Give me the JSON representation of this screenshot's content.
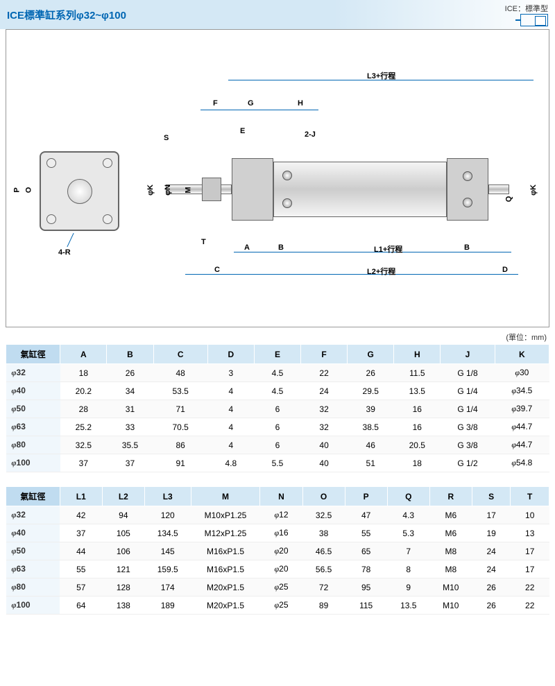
{
  "title": "ICE標準缸系列φ32~φ100",
  "legend": {
    "label": "ICE：標準型"
  },
  "unit_label": "(單位：mm)",
  "diagram": {
    "labels": [
      "L3+行程",
      "F",
      "G",
      "H",
      "S",
      "E",
      "2-J",
      "φK",
      "φN",
      "M",
      "T",
      "A",
      "B",
      "L1+行程",
      "B",
      "C",
      "L2+行程",
      "D",
      "Q",
      "φK",
      "P",
      "O",
      "4-R"
    ],
    "colors": {
      "dim_line": "#0066b3",
      "body_gradient": [
        "#f5f5f5",
        "#cccccc",
        "#f5f5f5"
      ],
      "cap_fill": "#d0d0d0",
      "outline": "#666666"
    }
  },
  "table1": {
    "columns": [
      "氣缸徑",
      "A",
      "B",
      "C",
      "D",
      "E",
      "F",
      "G",
      "H",
      "J",
      "K"
    ],
    "col_widths": [
      "70",
      "60",
      "60",
      "70",
      "60",
      "60",
      "60",
      "60",
      "60",
      "70",
      "70"
    ],
    "rows": [
      [
        "φ32",
        "18",
        "26",
        "48",
        "3",
        "4.5",
        "22",
        "26",
        "11.5",
        "G 1/8",
        "φ30"
      ],
      [
        "φ40",
        "20.2",
        "34",
        "53.5",
        "4",
        "4.5",
        "24",
        "29.5",
        "13.5",
        "G 1/4",
        "φ34.5"
      ],
      [
        "φ50",
        "28",
        "31",
        "71",
        "4",
        "6",
        "32",
        "39",
        "16",
        "G 1/4",
        "φ39.7"
      ],
      [
        "φ63",
        "25.2",
        "33",
        "70.5",
        "4",
        "6",
        "32",
        "38.5",
        "16",
        "G 3/8",
        "φ44.7"
      ],
      [
        "φ80",
        "32.5",
        "35.5",
        "86",
        "4",
        "6",
        "40",
        "46",
        "20.5",
        "G 3/8",
        "φ44.7"
      ],
      [
        "φ100",
        "37",
        "37",
        "91",
        "4.8",
        "5.5",
        "40",
        "51",
        "18",
        "G 1/2",
        "φ54.8"
      ]
    ]
  },
  "table2": {
    "columns": [
      "氣缸徑",
      "L1",
      "L2",
      "L3",
      "M",
      "N",
      "O",
      "P",
      "Q",
      "R",
      "S",
      "T"
    ],
    "col_widths": [
      "70",
      "55",
      "55",
      "60",
      "90",
      "55",
      "55",
      "55",
      "55",
      "55",
      "50",
      "50"
    ],
    "rows": [
      [
        "φ32",
        "42",
        "94",
        "120",
        "M10xP1.25",
        "φ12",
        "32.5",
        "47",
        "4.3",
        "M6",
        "17",
        "10"
      ],
      [
        "φ40",
        "37",
        "105",
        "134.5",
        "M12xP1.25",
        "φ16",
        "38",
        "55",
        "5.3",
        "M6",
        "19",
        "13"
      ],
      [
        "φ50",
        "44",
        "106",
        "145",
        "M16xP1.5",
        "φ20",
        "46.5",
        "65",
        "7",
        "M8",
        "24",
        "17"
      ],
      [
        "φ63",
        "55",
        "121",
        "159.5",
        "M16xP1.5",
        "φ20",
        "56.5",
        "78",
        "8",
        "M8",
        "24",
        "17"
      ],
      [
        "φ80",
        "57",
        "128",
        "174",
        "M20xP1.5",
        "φ25",
        "72",
        "95",
        "9",
        "M10",
        "26",
        "22"
      ],
      [
        "φ100",
        "64",
        "138",
        "189",
        "M20xP1.5",
        "φ25",
        "89",
        "115",
        "13.5",
        "M10",
        "26",
        "22"
      ]
    ]
  }
}
